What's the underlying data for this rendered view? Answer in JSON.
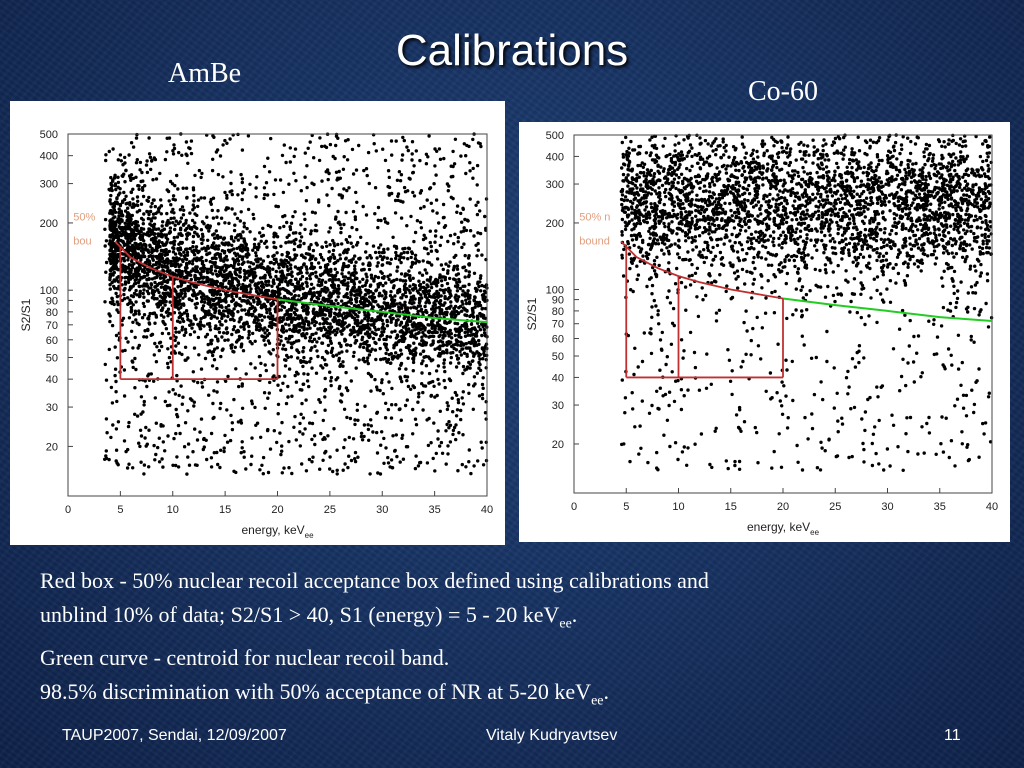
{
  "slide": {
    "title": "Calibrations",
    "footer": {
      "left": "TAUP2007, Sendai, 12/09/2007",
      "center": "Vitaly Kudryavtsev",
      "page": "11"
    }
  },
  "body": {
    "line1": "Red box - 50% nuclear recoil acceptance box defined using calibrations and",
    "line2_main": "unblind 10% of data; S2/S1 > 40, S1 (energy) = 5 - 20 keV",
    "line2_sub": "ee",
    "line2_end": ".",
    "line3": "Green curve - centroid for nuclear recoil band.",
    "line4_main": "98.5% discrimination with 50% acceptance of NR at 5-20 keV",
    "line4_sub": "ee",
    "line4_end": "."
  },
  "colors": {
    "box": "#c03030",
    "centroid": "#22cc22",
    "points": "#000000"
  },
  "chart_data": [
    {
      "type": "scatter",
      "label": "AmBe",
      "annotation_1": "50%",
      "annotation_2": "bou",
      "xlabel": "energy, keV",
      "xlabel_sub": "ee",
      "ylabel": "S2/S1",
      "xlim": [
        0,
        40
      ],
      "ylim": [
        12,
        500
      ],
      "yscale": "log",
      "xticks": [
        0,
        5,
        10,
        15,
        20,
        25,
        30,
        35,
        40
      ],
      "yticks": [
        20,
        30,
        40,
        50,
        60,
        70,
        80,
        90,
        100,
        200,
        300,
        400,
        500
      ],
      "acceptance_box": {
        "x_range": [
          5,
          20
        ],
        "x_split": 10,
        "y_min": 40
      },
      "nr_boundary_curve": [
        [
          4.5,
          165
        ],
        [
          6,
          140
        ],
        [
          8,
          125
        ],
        [
          10,
          115
        ],
        [
          12,
          108
        ],
        [
          15,
          100
        ],
        [
          20,
          91
        ],
        [
          25,
          85
        ],
        [
          30,
          80
        ],
        [
          35,
          75
        ],
        [
          40,
          72
        ]
      ],
      "centroid_curve": [
        [
          4.5,
          165
        ],
        [
          8,
          125
        ],
        [
          12,
          108
        ],
        [
          16,
          98
        ],
        [
          20,
          91
        ],
        [
          25,
          85
        ],
        [
          30,
          80
        ],
        [
          35,
          75
        ],
        [
          40,
          72
        ]
      ],
      "centroid_color_range": [
        20,
        40
      ],
      "point_distribution": {
        "dense_x_start": 4,
        "band_center_ratio": 1.0,
        "n_points": 5200
      }
    },
    {
      "type": "scatter",
      "label": "Co-60",
      "annotation_1": "50% n",
      "annotation_2": "bound",
      "xlabel": "energy, keV",
      "xlabel_sub": "ee",
      "ylabel": "S2/S1",
      "xlim": [
        0,
        40
      ],
      "ylim": [
        12,
        500
      ],
      "yscale": "log",
      "xticks": [
        0,
        5,
        10,
        15,
        20,
        25,
        30,
        35,
        40
      ],
      "yticks": [
        20,
        30,
        40,
        50,
        60,
        70,
        80,
        90,
        100,
        200,
        300,
        400,
        500
      ],
      "acceptance_box": {
        "x_range": [
          5,
          20
        ],
        "x_split": 10,
        "y_min": 40
      },
      "nr_boundary_curve": [
        [
          4.5,
          165
        ],
        [
          6,
          140
        ],
        [
          8,
          125
        ],
        [
          10,
          115
        ],
        [
          12,
          108
        ],
        [
          15,
          100
        ],
        [
          20,
          91
        ],
        [
          25,
          85
        ],
        [
          30,
          80
        ],
        [
          35,
          75
        ],
        [
          40,
          72
        ]
      ],
      "centroid_curve": [
        [
          4.5,
          165
        ],
        [
          8,
          125
        ],
        [
          12,
          108
        ],
        [
          16,
          98
        ],
        [
          20,
          91
        ],
        [
          25,
          85
        ],
        [
          30,
          80
        ],
        [
          35,
          75
        ],
        [
          40,
          72
        ]
      ],
      "centroid_color_range": [
        20,
        40
      ],
      "point_distribution": {
        "band_center": 250,
        "n_points": 3600
      }
    }
  ]
}
